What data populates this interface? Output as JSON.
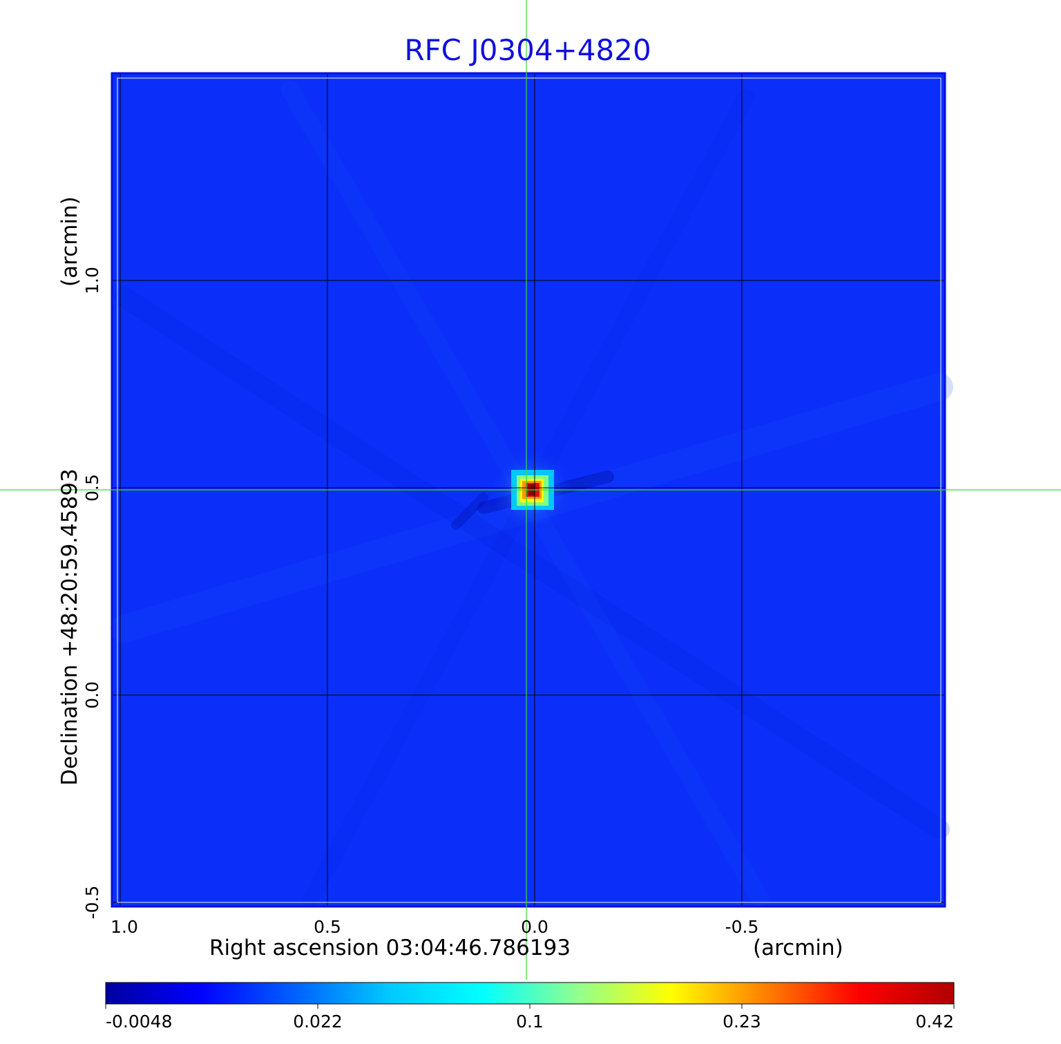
{
  "chart_data": {
    "type": "heatmap",
    "title": "RFC J0304+4820",
    "colors": {
      "title": "#1010dd",
      "frame": "#0a10e0",
      "background_map": "#0b2ff8",
      "crosshair": "#33dd33",
      "grid": "#000000"
    },
    "xlabel": "Right ascension  03:04:46.786193",
    "xunit": "(arcmin)",
    "ylabel": "Declination  +48:20:59.45893",
    "yunit": "(arcmin)",
    "x_ticks": [
      {
        "value": 1.0,
        "label": "1.0"
      },
      {
        "value": 0.5,
        "label": "0.5"
      },
      {
        "value": 0.0,
        "label": "0.0"
      },
      {
        "value": -0.5,
        "label": "-0.5"
      }
    ],
    "y_ticks": [
      {
        "value": 1.0,
        "label": "1.0"
      },
      {
        "value": 0.5,
        "label": "0.5"
      },
      {
        "value": 0.0,
        "label": "0.0"
      },
      {
        "value": -0.5,
        "label": "-0.5"
      }
    ],
    "xlim": [
      1.02,
      -0.99
    ],
    "ylim": [
      -0.51,
      1.5
    ],
    "grid": true,
    "crosshair": {
      "x": 0.02,
      "y": 0.495
    },
    "source_peak": {
      "x": 0.0,
      "y": 0.5,
      "value": 0.42
    },
    "colorbar": {
      "scale": "nonlinear",
      "range": [
        -0.0048,
        0.42
      ],
      "ticks": [
        {
          "value": -0.0048,
          "label": "-0.0048"
        },
        {
          "value": 0.022,
          "label": "0.022"
        },
        {
          "value": 0.1,
          "label": "0.1"
        },
        {
          "value": 0.23,
          "label": "0.23"
        },
        {
          "value": 0.42,
          "label": "0.42"
        }
      ],
      "colormap": [
        "#0000a0",
        "#0000ff",
        "#0060ff",
        "#00c8ff",
        "#00ffff",
        "#90ff90",
        "#ffff00",
        "#ff8000",
        "#ff0000",
        "#b00000"
      ]
    }
  }
}
